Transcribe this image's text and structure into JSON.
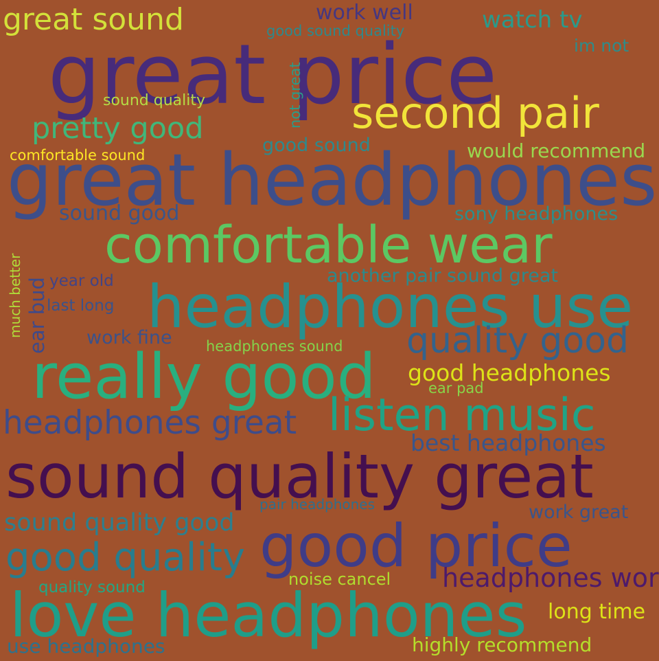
{
  "colors": {
    "background": "#a0522d"
  },
  "words": [
    {
      "text": "great sound",
      "color": "#d3e13a"
    },
    {
      "text": "work well",
      "color": "#453781"
    },
    {
      "text": "watch tv",
      "color": "#2a9a8b"
    },
    {
      "text": "good sound quality",
      "color": "#2c8a8d"
    },
    {
      "text": "im not",
      "color": "#2e8c8a"
    },
    {
      "text": "great price",
      "color": "#472b7a"
    },
    {
      "text": "not great",
      "color": "#2a9c89"
    },
    {
      "text": "sound quality",
      "color": "#b5dc45"
    },
    {
      "text": "second pair",
      "color": "#f1e43a"
    },
    {
      "text": "pretty good",
      "color": "#40b77a"
    },
    {
      "text": "good sound",
      "color": "#2d8a8d"
    },
    {
      "text": "comfortable sound",
      "color": "#fde725"
    },
    {
      "text": "would recommend",
      "color": "#9ad84f"
    },
    {
      "text": "great headphones",
      "color": "#3d4e8a"
    },
    {
      "text": "sound good",
      "color": "#39568c"
    },
    {
      "text": "sony headphones",
      "color": "#2c8e8b"
    },
    {
      "text": "comfortable wear",
      "color": "#5cc863"
    },
    {
      "text": "much better",
      "color": "#b0dc3a"
    },
    {
      "text": "ear bud",
      "color": "#3e4a89"
    },
    {
      "text": "year old",
      "color": "#414487"
    },
    {
      "text": "another pair sound great",
      "color": "#2b8a8c"
    },
    {
      "text": "last long",
      "color": "#3a538b"
    },
    {
      "text": "headphones use",
      "color": "#26918f"
    },
    {
      "text": "work fine",
      "color": "#3b528b"
    },
    {
      "text": "headphones sound",
      "color": "#84d44b"
    },
    {
      "text": "quality good",
      "color": "#33638d"
    },
    {
      "text": "really good",
      "color": "#29af7f"
    },
    {
      "text": "good headphones",
      "color": "#dde318"
    },
    {
      "text": "ear pad",
      "color": "#89d548"
    },
    {
      "text": "headphones great",
      "color": "#3e4c8a"
    },
    {
      "text": "listen music",
      "color": "#20a386"
    },
    {
      "text": "best headphones",
      "color": "#39568c"
    },
    {
      "text": "sound quality great",
      "color": "#440f4f"
    },
    {
      "text": "pair headphones",
      "color": "#2e6f8e"
    },
    {
      "text": "work great",
      "color": "#39558c"
    },
    {
      "text": "sound quality good",
      "color": "#2d7f8e"
    },
    {
      "text": "good price",
      "color": "#3f3c87"
    },
    {
      "text": "good quality",
      "color": "#287d8e"
    },
    {
      "text": "noise cancel",
      "color": "#b0dd2f"
    },
    {
      "text": "headphones work",
      "color": "#4d1a6b"
    },
    {
      "text": "quality sound",
      "color": "#22a785"
    },
    {
      "text": "love headphones",
      "color": "#1f9e89"
    },
    {
      "text": "long time",
      "color": "#dde318"
    },
    {
      "text": "use headphones",
      "color": "#2c728e"
    },
    {
      "text": "highly recommend",
      "color": "#b5de2b"
    }
  ]
}
